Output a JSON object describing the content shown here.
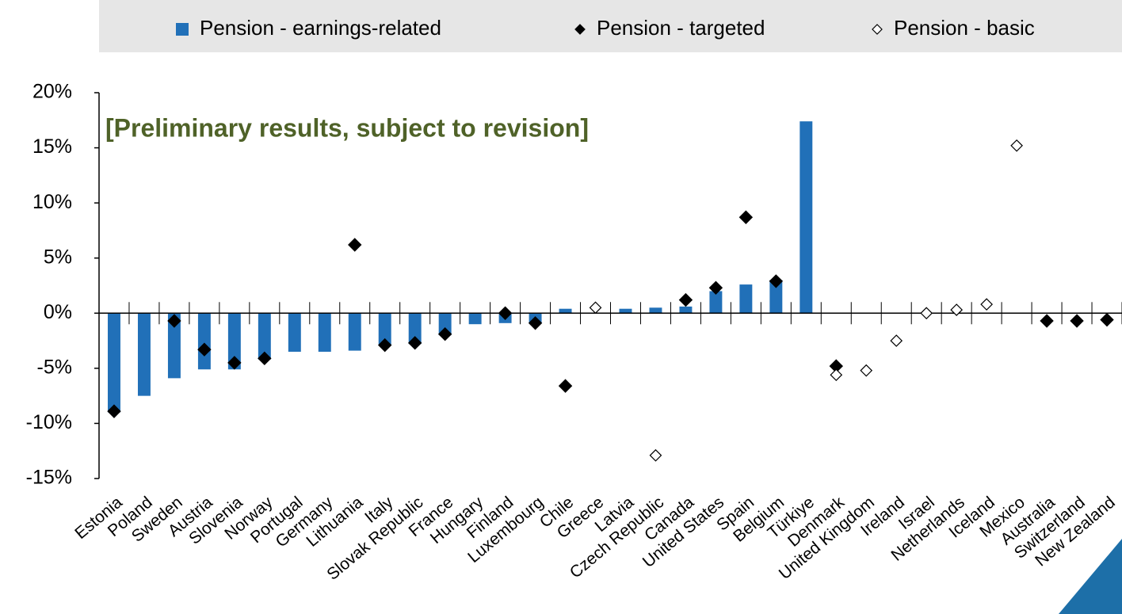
{
  "chart_data": {
    "type": "bar",
    "annotation": "[Preliminary results, subject to revision]",
    "categories": [
      "Estonia",
      "Poland",
      "Sweden",
      "Austria",
      "Slovenia",
      "Norway",
      "Portugal",
      "Germany",
      "Lithuania",
      "Italy",
      "Slovak Republic",
      "France",
      "Hungary",
      "Finland",
      "Luxembourg",
      "Chile",
      "Greece",
      "Latvia",
      "Czech Republic",
      "Canada",
      "United States",
      "Spain",
      "Belgium",
      "Türkiye",
      "Denmark",
      "United Kingdom",
      "Ireland",
      "Israel",
      "Netherlands",
      "Iceland",
      "Mexico",
      "Australia",
      "Switzerland",
      "New Zealand"
    ],
    "series": [
      {
        "name": "Pension - earnings-related",
        "type": "bar",
        "color": "#2170b8",
        "values": [
          -9.0,
          -7.5,
          -5.9,
          -5.1,
          -5.1,
          -4.2,
          -3.5,
          -3.5,
          -3.4,
          -2.9,
          -2.8,
          -2.0,
          -1.0,
          -0.9,
          -0.9,
          0.4,
          null,
          0.4,
          0.5,
          0.6,
          2.0,
          2.6,
          3.0,
          17.4,
          null,
          null,
          null,
          null,
          null,
          null,
          null,
          null,
          null,
          null
        ]
      },
      {
        "name": "Pension - targeted",
        "type": "scatter",
        "marker": "filled",
        "color": "#000000",
        "values": [
          -8.9,
          null,
          -0.7,
          -3.3,
          -4.5,
          -4.1,
          null,
          null,
          6.2,
          -2.9,
          -2.7,
          -1.9,
          null,
          0.0,
          -0.9,
          -6.6,
          null,
          null,
          null,
          1.2,
          2.3,
          8.7,
          2.9,
          null,
          -4.8,
          null,
          null,
          null,
          null,
          null,
          null,
          -0.7,
          -0.7,
          -0.6
        ]
      },
      {
        "name": "Pension - basic",
        "type": "scatter",
        "marker": "open",
        "color": "#000000",
        "values": [
          null,
          null,
          null,
          null,
          null,
          null,
          null,
          null,
          null,
          null,
          null,
          null,
          null,
          null,
          null,
          null,
          0.5,
          null,
          -12.9,
          null,
          null,
          null,
          null,
          null,
          -5.6,
          -5.2,
          -2.5,
          0.0,
          0.3,
          0.8,
          15.2,
          null,
          null,
          null
        ]
      }
    ],
    "ylim": [
      -15,
      20
    ],
    "yticks": [
      {
        "value": -15,
        "label": "-15%"
      },
      {
        "value": -10,
        "label": "-10%"
      },
      {
        "value": -5,
        "label": "-5%"
      },
      {
        "value": 0,
        "label": "0%"
      },
      {
        "value": 5,
        "label": "5%"
      },
      {
        "value": 10,
        "label": "10%"
      },
      {
        "value": 15,
        "label": "15%"
      },
      {
        "value": 20,
        "label": "20%"
      }
    ],
    "grid": false
  }
}
